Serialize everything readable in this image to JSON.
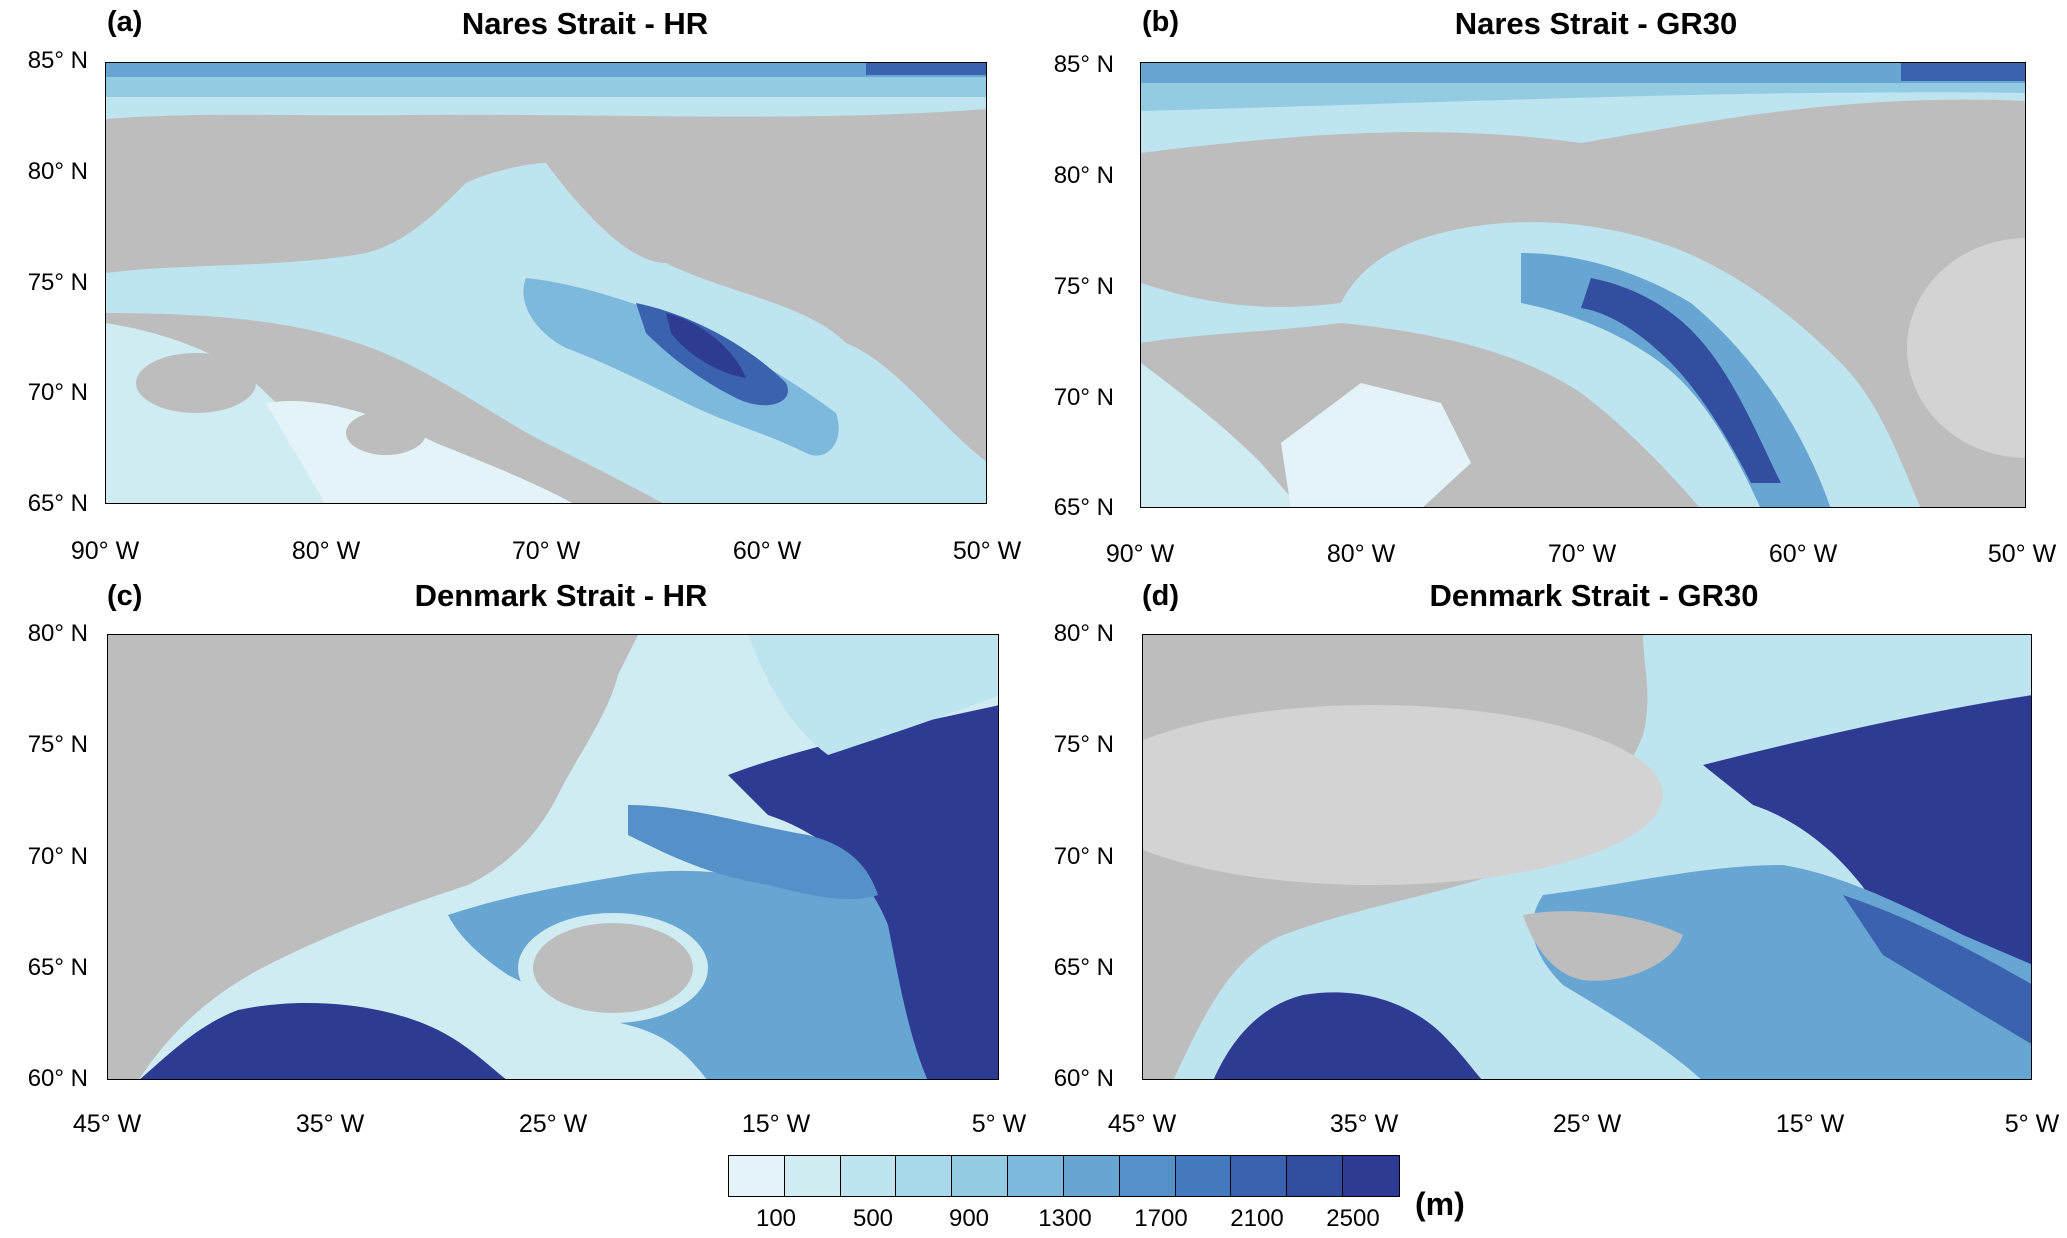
{
  "panels": [
    {
      "label": "(a)",
      "title": "Nares Strait - HR",
      "lat_labels": [
        "85° N",
        "80° N",
        "75° N",
        "70° N",
        "65° N"
      ],
      "lon_labels": [
        "90° W",
        "80° W",
        "70° W",
        "60° W",
        "50° W"
      ]
    },
    {
      "label": "(b)",
      "title": "Nares Strait - GR30",
      "lat_labels": [
        "85° N",
        "80° N",
        "75° N",
        "70° N",
        "65° N"
      ],
      "lon_labels": [
        "90° W",
        "80° W",
        "70° W",
        "60° W",
        "50° W"
      ]
    },
    {
      "label": "(c)",
      "title": "Denmark Strait - HR",
      "lat_labels": [
        "80° N",
        "75° N",
        "70° N",
        "65° N",
        "60° N"
      ],
      "lon_labels": [
        "45° W",
        "35° W",
        "25° W",
        "15° W",
        "5° W"
      ]
    },
    {
      "label": "(d)",
      "title": "Denmark Strait - GR30",
      "lat_labels": [
        "80° N",
        "75° N",
        "70° N",
        "65° N",
        "60° N"
      ],
      "lon_labels": [
        "45° W",
        "35° W",
        "25° W",
        "15° W",
        "5° W"
      ]
    }
  ],
  "colorbar": {
    "labels": [
      "100",
      "500",
      "900",
      "1300",
      "1700",
      "2100",
      "2500"
    ],
    "unit": "(m)",
    "colors": [
      "#e3f3f8",
      "#d0ecf3",
      "#bde4ef",
      "#a8d9ea",
      "#93cbe3",
      "#7db9dc",
      "#67a5d3",
      "#5590c9",
      "#4678bd",
      "#3a62ae",
      "#334e9f",
      "#2e3b92"
    ]
  },
  "colors": {
    "land": "#bdbdbd",
    "ice_cap": "#d3d3d3"
  }
}
